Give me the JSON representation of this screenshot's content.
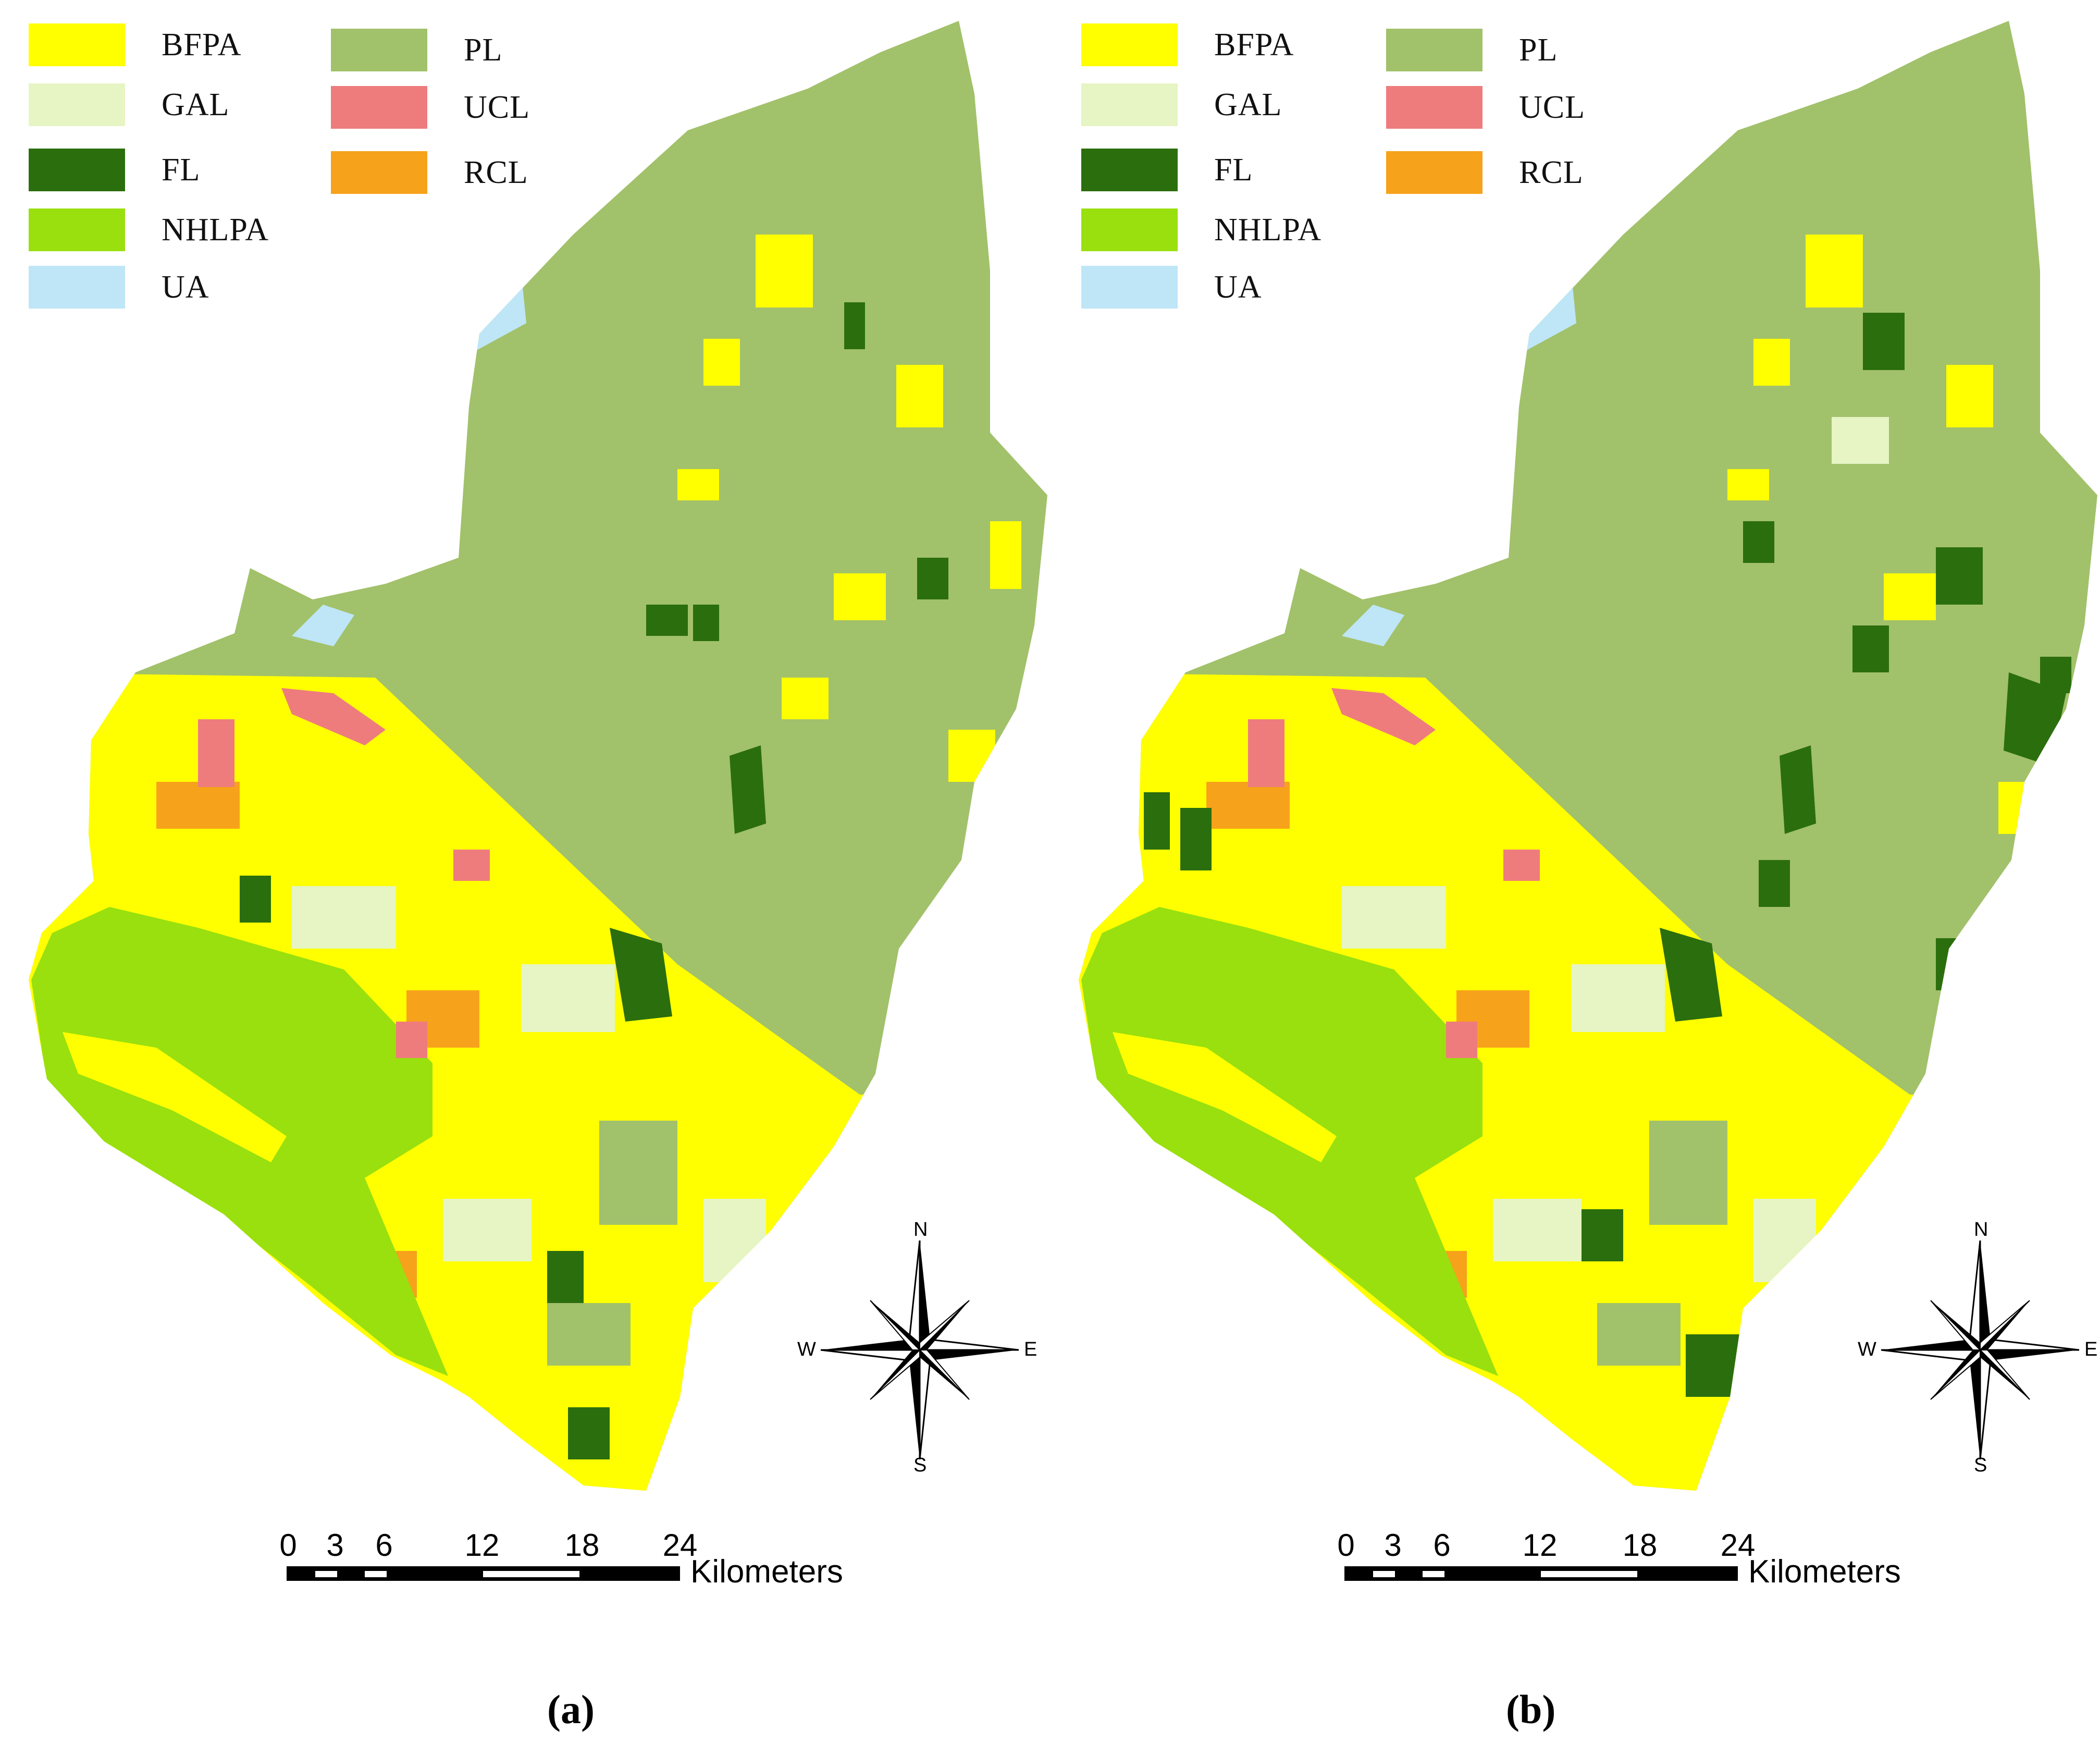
{
  "legend": {
    "left_column": [
      {
        "label": "BFPA",
        "color": "#FFFF00"
      },
      {
        "label": "GAL",
        "color": "#E6F5C3"
      },
      {
        "label": "FL",
        "color": "#2B6E0E"
      },
      {
        "label": "NHLPA",
        "color": "#99E00E"
      },
      {
        "label": "UA",
        "color": "#BEE6F7"
      }
    ],
    "right_column": [
      {
        "label": "PL",
        "color": "#A2C16B"
      },
      {
        "label": "UCL",
        "color": "#EE7C7C"
      },
      {
        "label": "RCL",
        "color": "#F7A21B"
      }
    ]
  },
  "compass": {
    "north": "N",
    "south": "S",
    "east": "E",
    "west": "W"
  },
  "scale_bar": {
    "ticks": [
      "0",
      "3",
      "6",
      "12",
      "18",
      "24"
    ],
    "unit": "Kilometers"
  },
  "panels": {
    "a": {
      "label": "(a)"
    },
    "b": {
      "label": "(b)"
    }
  }
}
